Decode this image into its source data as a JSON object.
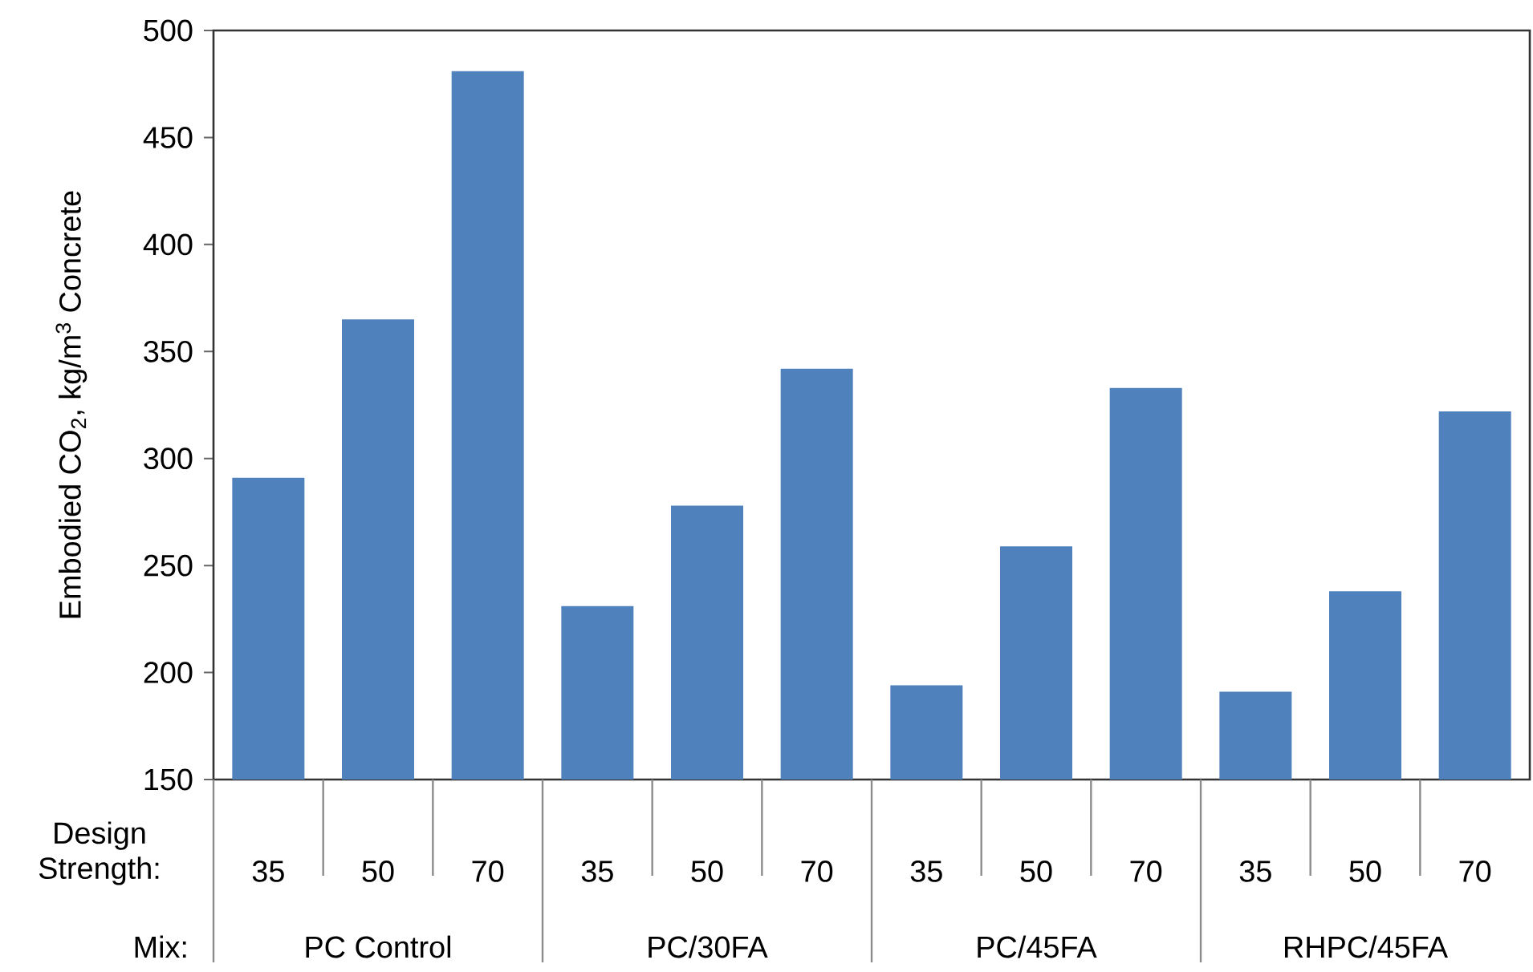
{
  "chart_data": {
    "type": "bar",
    "ylabel": "Embodied CO$_{2}$, kg/m$^{3}$ Concrete",
    "categories": [
      "35",
      "50",
      "70",
      "35",
      "50",
      "70",
      "35",
      "50",
      "70",
      "35",
      "50",
      "70"
    ],
    "values": [
      291,
      365,
      481,
      231,
      278,
      342,
      194,
      259,
      333,
      191,
      238,
      322
    ],
    "color": "#4f81bd",
    "ylim": [
      150,
      500
    ],
    "yticks": [
      150,
      200,
      250,
      300,
      350,
      400,
      450,
      500
    ],
    "annotations": [
      "Design Strength:",
      "Mix:",
      "PC Control",
      "PC/30FA",
      "PC/45FA",
      "RHPC/45FA"
    ]
  }
}
